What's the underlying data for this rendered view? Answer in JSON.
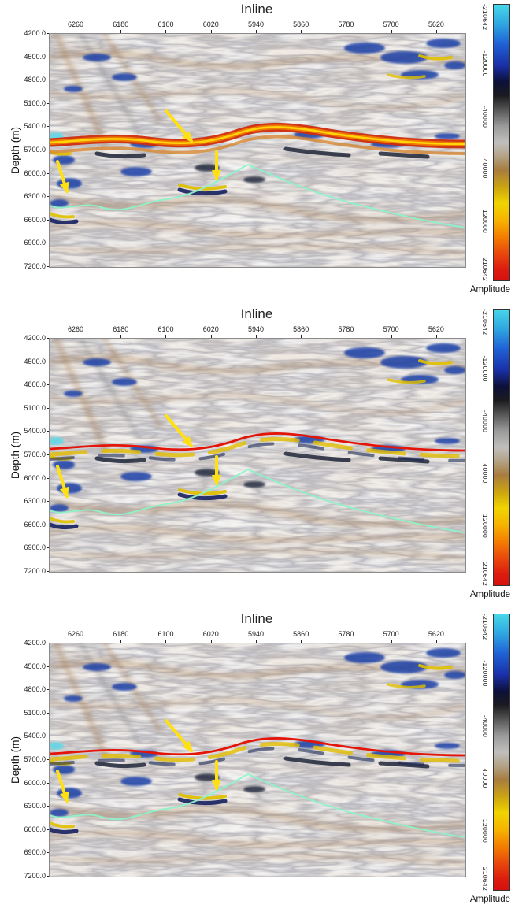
{
  "figure": {
    "panel_title": "Inline",
    "ylabel": "Depth (m)",
    "x_ticks": [
      "6260",
      "6180",
      "6100",
      "6020",
      "5940",
      "5860",
      "5780",
      "5700",
      "5620"
    ],
    "y_ticks": [
      "4200.0",
      "4500.0",
      "4800.0",
      "5100.0",
      "5400.0",
      "5700.0",
      "6000.0",
      "6300.0",
      "6600.0",
      "6900.0",
      "7200.0"
    ],
    "colorbar": {
      "label": "Amplitude",
      "ticks": [
        "-210642",
        "-120000",
        "-40000",
        "40000",
        "120000",
        "210642"
      ]
    },
    "colors": {
      "arrow_yellow": "#ffe012",
      "horizon_green": "#8df2c8",
      "horizon_red": "#e41508",
      "reflector_band": [
        "#cf2d0e",
        "#f07a00",
        "#ffd60a"
      ]
    }
  },
  "chart_data": [
    {
      "type": "heatmap",
      "subtype": "seismic depth section",
      "panel": 1,
      "title": "Inline",
      "xlabel": "Inline",
      "ylabel": "Depth (m)",
      "x_ticks": [
        6260,
        6180,
        6100,
        6020,
        5940,
        5860,
        5780,
        5700,
        5620
      ],
      "x_axis_direction": "inline numbers decrease left to right",
      "y_ticks": [
        4200.0,
        4500.0,
        4800.0,
        5100.0,
        5400.0,
        5700.0,
        6000.0,
        6300.0,
        6600.0,
        6900.0,
        7200.0
      ],
      "ylim": [
        4200.0,
        7200.0
      ],
      "colorbar": {
        "label": "Amplitude",
        "min": -210642,
        "max": 210642,
        "ticks": [
          -210642,
          -120000,
          -40000,
          40000,
          120000,
          210642
        ],
        "palette_top_to_bottom": "cyan, blue, dark navy, black, gray, brown, yellow, orange, red"
      },
      "values": "2D seismic amplitude image (grayscale with brown/blue/yellow anomalies); strong continuous red-orange-yellow reflector band near 5400-5650 m depth; blue high-amplitude clusters in upper corners and along left edge",
      "annotations": [
        {
          "type": "arrow",
          "color": "#ffe012",
          "count": 3,
          "description": "yellow arrows: one pointing down-right to the main reflector near inline 6150, one pointing down to an anomaly below the reflector near inline 6100, one at far left pointing down near 6000-6300 m"
        },
        {
          "type": "horizon",
          "color": "#8df2c8",
          "description": "pale green interpreted horizon, undulating on the left, cresting near inline 6020 (~5800 m), deepening rightward to ~6500 m"
        }
      ]
    },
    {
      "type": "heatmap",
      "subtype": "seismic depth section",
      "panel": 2,
      "title": "Inline",
      "xlabel": "Inline",
      "ylabel": "Depth (m)",
      "x_ticks": [
        6260,
        6180,
        6100,
        6020,
        5940,
        5860,
        5780,
        5700,
        5620
      ],
      "x_axis_direction": "inline numbers decrease left to right",
      "y_ticks": [
        4200.0,
        4500.0,
        4800.0,
        5100.0,
        5400.0,
        5700.0,
        6000.0,
        6300.0,
        6600.0,
        6900.0,
        7200.0
      ],
      "ylim": [
        4200.0,
        7200.0
      ],
      "colorbar": {
        "label": "Amplitude",
        "min": -210642,
        "max": 210642,
        "ticks": [
          -210642,
          -120000,
          -40000,
          40000,
          120000,
          210642
        ],
        "palette_top_to_bottom": "cyan, blue, dark navy, black, gray, brown, yellow, orange, red"
      },
      "values": "2D seismic amplitude image similar to panel 1 but with weaker reflector band and an interpreted red horizon drawn along it",
      "annotations": [
        {
          "type": "arrow",
          "color": "#ffe012",
          "count": 3,
          "description": "same three yellow arrows as panel 1"
        },
        {
          "type": "horizon",
          "color": "#e41508",
          "description": "red interpreted horizon tracking the main reflector near 5500-5600 m"
        },
        {
          "type": "horizon",
          "color": "#8df2c8",
          "description": "pale green interpreted horizon cresting near inline 6020 and deepening to the right"
        }
      ]
    },
    {
      "type": "heatmap",
      "subtype": "seismic depth section",
      "panel": 3,
      "title": "Inline",
      "xlabel": "Inline",
      "ylabel": "Depth (m)",
      "x_ticks": [
        6260,
        6180,
        6100,
        6020,
        5940,
        5860,
        5780,
        5700,
        5620
      ],
      "x_axis_direction": "inline numbers decrease left to right",
      "y_ticks": [
        4200.0,
        4500.0,
        4800.0,
        5100.0,
        5400.0,
        5700.0,
        6000.0,
        6300.0,
        6600.0,
        6900.0,
        7200.0
      ],
      "ylim": [
        4200.0,
        7200.0
      ],
      "colorbar": {
        "label": "Amplitude",
        "min": -210642,
        "max": 210642,
        "ticks": [
          -210642,
          -120000,
          -40000,
          40000,
          120000,
          210642
        ],
        "palette_top_to_bottom": "cyan, blue, dark navy, black, gray, brown, yellow, orange, red"
      },
      "values": "2D seismic amplitude image similar to panel 2, with red interpreted horizon along the main reflector and yellow/blue anomalies beneath it",
      "annotations": [
        {
          "type": "arrow",
          "color": "#ffe012",
          "count": 3,
          "description": "same three yellow arrows as panels 1 and 2"
        },
        {
          "type": "horizon",
          "color": "#e41508",
          "description": "red interpreted horizon tracking the main reflector near 5500-5600 m"
        },
        {
          "type": "horizon",
          "color": "#8df2c8",
          "description": "pale green interpreted horizon cresting near inline 6020 and deepening to the right"
        }
      ]
    }
  ]
}
